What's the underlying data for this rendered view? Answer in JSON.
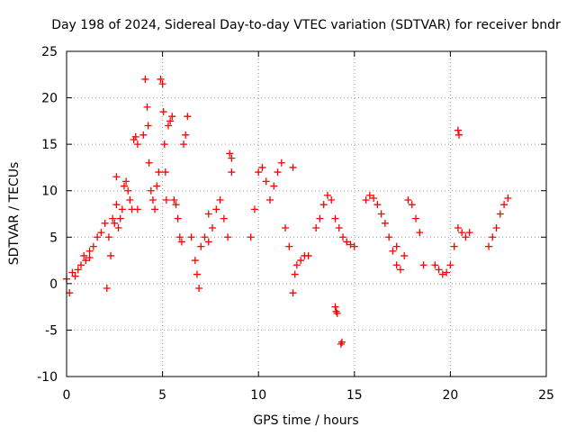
{
  "chart_data": {
    "type": "scatter",
    "title": "Day 198 of 2024, Sidereal Day-to-day VTEC variation (SDTVAR) for receiver bndr",
    "xlabel": "GPS time / hours",
    "ylabel": "SDTVAR / TECUs",
    "xlim": [
      0,
      25
    ],
    "ylim": [
      -10,
      25
    ],
    "xticks": [
      0,
      5,
      10,
      15,
      20,
      25
    ],
    "yticks": [
      -10,
      -5,
      0,
      5,
      10,
      15,
      20,
      25
    ],
    "grid": true,
    "marker": "+",
    "marker_color": "#ff0000",
    "series": [
      {
        "name": "SDTVAR",
        "x": [
          0.0,
          0.15,
          0.3,
          0.45,
          0.6,
          0.75,
          0.9,
          1.0,
          1.2,
          1.4,
          1.6,
          1.8,
          2.0,
          2.1,
          2.2,
          2.3,
          2.4,
          2.5,
          2.6,
          2.7,
          2.8,
          2.9,
          3.0,
          3.1,
          3.2,
          3.3,
          3.4,
          3.5,
          3.6,
          3.7,
          4.0,
          4.1,
          4.2,
          4.25,
          4.3,
          4.4,
          4.5,
          4.6,
          4.7,
          4.8,
          4.9,
          5.0,
          5.05,
          5.1,
          5.15,
          5.2,
          5.3,
          5.4,
          5.5,
          5.6,
          5.7,
          5.8,
          5.9,
          6.0,
          6.1,
          6.2,
          6.3,
          6.5,
          6.7,
          6.8,
          6.9,
          7.0,
          7.2,
          7.4,
          7.6,
          7.8,
          8.0,
          8.2,
          8.4,
          8.5,
          8.6,
          9.6,
          9.8,
          10.0,
          10.2,
          10.4,
          10.6,
          10.8,
          11.0,
          11.2,
          11.4,
          11.6,
          11.8,
          11.9,
          12.0,
          12.2,
          12.4,
          12.6,
          13.0,
          13.2,
          13.4,
          13.6,
          13.8,
          14.0,
          14.2,
          14.4,
          14.6,
          14.8,
          15.0,
          15.6,
          15.8,
          16.0,
          16.2,
          16.4,
          16.6,
          16.8,
          17.0,
          17.2,
          17.4,
          17.6,
          17.8,
          18.0,
          18.2,
          18.4,
          19.2,
          19.4,
          19.6,
          19.8,
          20.0,
          20.2,
          20.4,
          20.6,
          20.8,
          21.0,
          22.0,
          22.2,
          22.4,
          22.6,
          22.8,
          23.0,
          14.0,
          14.05,
          14.1,
          14.3,
          14.35,
          20.4,
          20.45,
          2.6,
          1.2,
          3.7,
          8.6,
          7.4,
          11.8,
          18.6,
          17.2
        ],
        "y": [
          0.5,
          -1.0,
          1.2,
          0.8,
          1.5,
          2.0,
          3.0,
          2.5,
          3.5,
          4.0,
          5.0,
          5.5,
          6.5,
          -0.5,
          5.0,
          3.0,
          7.0,
          6.5,
          8.5,
          6.0,
          7.0,
          8.0,
          10.5,
          11.0,
          10.0,
          9.0,
          8.0,
          15.5,
          15.8,
          15.0,
          16.0,
          22.0,
          19.0,
          17.0,
          13.0,
          10.0,
          9.0,
          8.0,
          10.5,
          12.0,
          22.0,
          21.5,
          18.5,
          15.0,
          12.0,
          9.0,
          17.0,
          17.5,
          18.0,
          9.0,
          8.5,
          7.0,
          5.0,
          4.5,
          15.0,
          16.0,
          18.0,
          5.0,
          2.5,
          1.0,
          -0.5,
          4.0,
          5.0,
          4.5,
          6.0,
          8.0,
          9.0,
          7.0,
          5.0,
          14.0,
          12.0,
          5.0,
          8.0,
          12.0,
          12.5,
          11.0,
          9.0,
          10.5,
          12.0,
          13.0,
          6.0,
          4.0,
          -1.0,
          1.0,
          2.0,
          2.5,
          3.0,
          3.0,
          6.0,
          7.0,
          8.5,
          9.5,
          9.0,
          7.0,
          6.0,
          5.0,
          4.5,
          4.2,
          4.0,
          9.0,
          9.5,
          9.2,
          8.5,
          7.5,
          6.5,
          5.0,
          3.5,
          2.0,
          1.5,
          3.0,
          9.0,
          8.5,
          7.0,
          5.5,
          2.0,
          1.5,
          1.0,
          1.2,
          2.0,
          4.0,
          6.0,
          5.5,
          5.0,
          5.5,
          4.0,
          5.0,
          6.0,
          7.5,
          8.5,
          9.2,
          -2.5,
          -3.0,
          -3.2,
          -6.5,
          -6.3,
          16.5,
          16.0,
          11.5,
          2.8,
          8.0,
          13.5,
          7.5,
          12.5,
          2.0,
          4.0
        ]
      }
    ]
  }
}
